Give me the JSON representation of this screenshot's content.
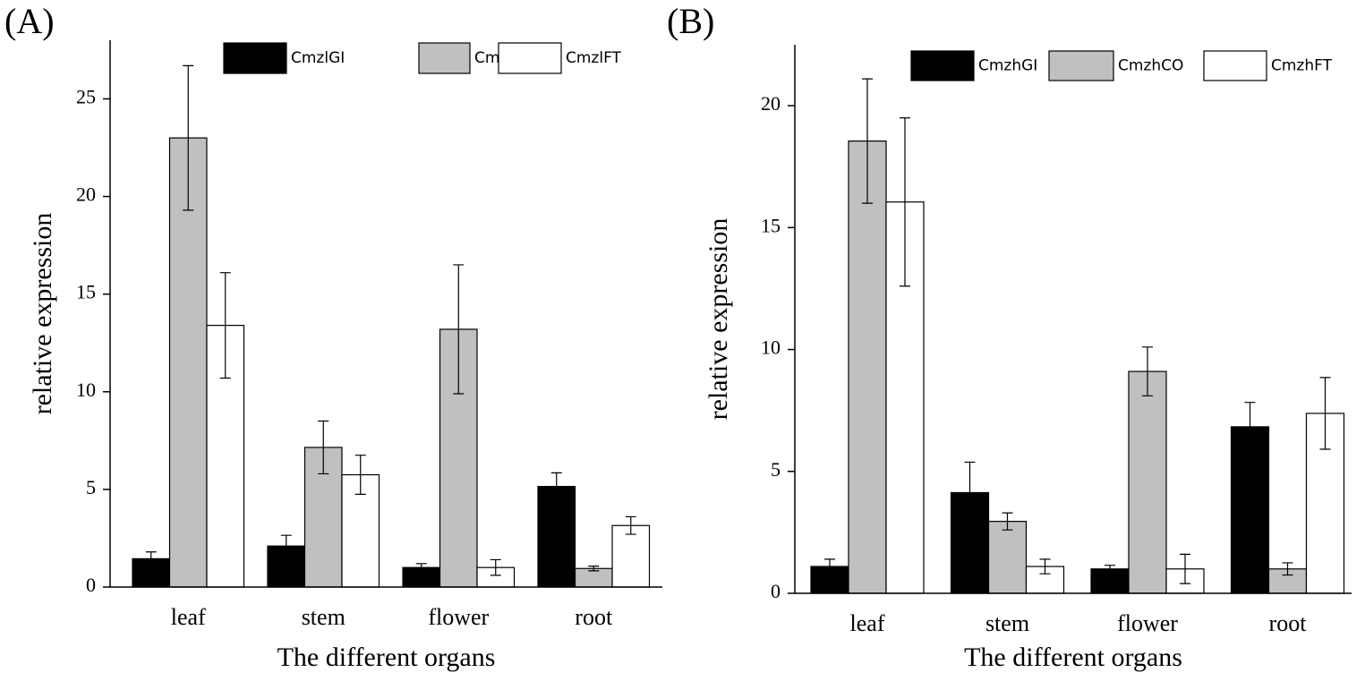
{
  "chart_data": [
    {
      "type": "bar",
      "panel_label": "(A)",
      "x_label": "The different organs",
      "y_label": "relative expression",
      "categories": [
        "leaf",
        "stem",
        "flower",
        "root"
      ],
      "series": [
        {
          "name": "CmzlGI",
          "color": "#000000",
          "values": [
            1.45,
            2.1,
            1.0,
            5.15
          ],
          "errors": [
            0.35,
            0.55,
            0.2,
            0.7
          ]
        },
        {
          "name": "CmzlCO",
          "color": "#c0c0c0",
          "values": [
            23.0,
            7.15,
            13.2,
            0.95
          ],
          "errors": [
            3.7,
            1.35,
            3.3,
            0.12
          ]
        },
        {
          "name": "CmzlFT",
          "color": "#ffffff",
          "values": [
            13.4,
            5.75,
            1.0,
            3.15
          ],
          "errors": [
            2.7,
            1.0,
            0.4,
            0.45
          ]
        }
      ],
      "ylim": [
        0,
        28
      ],
      "yticks": [
        0,
        5,
        10,
        15,
        20,
        25
      ]
    },
    {
      "type": "bar",
      "panel_label": "(B)",
      "x_label": "The different organs",
      "y_label": "relative expression",
      "categories": [
        "leaf",
        "stem",
        "flower",
        "root"
      ],
      "series": [
        {
          "name": "CmzhGI",
          "color": "#000000",
          "values": [
            1.1,
            4.13,
            1.0,
            6.83
          ],
          "errors": [
            0.3,
            1.25,
            0.15,
            1.0
          ]
        },
        {
          "name": "CmzhCO",
          "color": "#c0c0c0",
          "values": [
            18.55,
            2.95,
            9.1,
            1.0
          ],
          "errors": [
            2.55,
            0.35,
            1.0,
            0.25
          ]
        },
        {
          "name": "CmzhFT",
          "color": "#ffffff",
          "values": [
            16.05,
            1.1,
            1.0,
            7.38
          ],
          "errors": [
            3.45,
            0.3,
            0.6,
            1.47
          ]
        }
      ],
      "ylim": [
        0,
        22.5
      ],
      "yticks": [
        0,
        5,
        10,
        15,
        20
      ]
    }
  ]
}
